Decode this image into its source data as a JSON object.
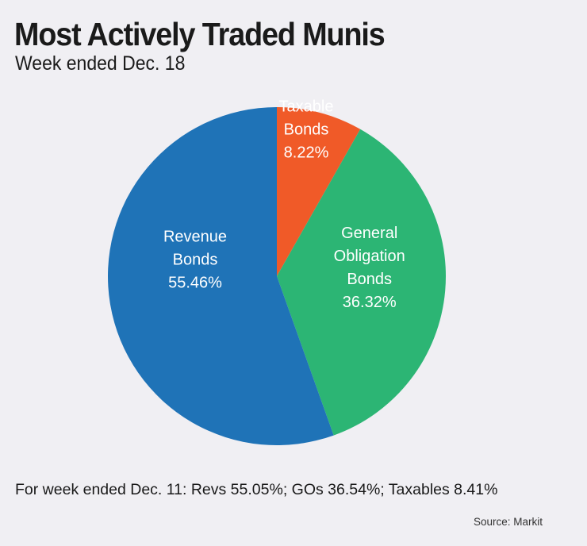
{
  "chart_data": {
    "type": "pie",
    "title": "Most Actively Traded Munis",
    "subtitle": "Week ended Dec. 18",
    "slices": [
      {
        "label_lines": [
          "Taxable",
          "Bonds"
        ],
        "value": 8.22,
        "value_label": "8.22%",
        "color": "#f05a28"
      },
      {
        "label_lines": [
          "General",
          "Obligation",
          "Bonds"
        ],
        "value": 36.32,
        "value_label": "36.32%",
        "color": "#2cb574"
      },
      {
        "label_lines": [
          "Revenue",
          "Bonds"
        ],
        "value": 55.46,
        "value_label": "55.46%",
        "color": "#1f73b7"
      }
    ]
  },
  "footnote": "For week ended Dec. 11: Revs 55.05%; GOs 36.54%; Taxables 8.41%",
  "source": "Source: Markit"
}
